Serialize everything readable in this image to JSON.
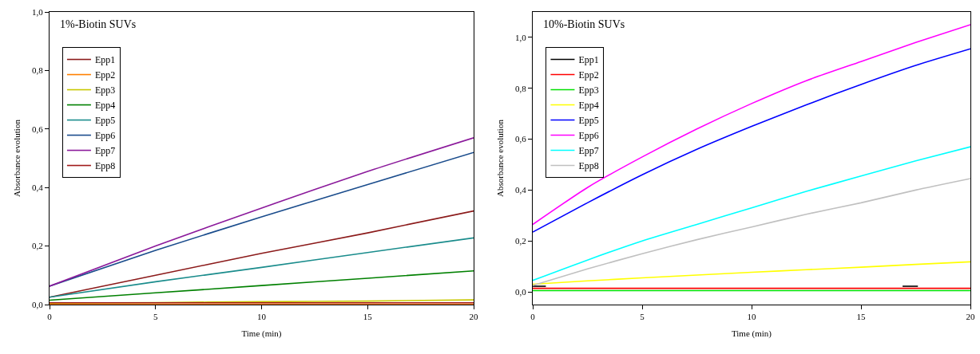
{
  "chart_data": [
    {
      "type": "line",
      "title": "1%-Biotin SUVs",
      "xlabel": "Time (min)",
      "ylabel": "Absorbance evolution",
      "x": [
        0,
        5,
        10,
        15,
        20
      ],
      "xlim": [
        0,
        20
      ],
      "xticks": [
        0,
        5,
        10,
        15,
        20
      ],
      "ylim": [
        0,
        1
      ],
      "yticks": [
        {
          "value": 0,
          "label": "0,0"
        },
        {
          "value": 0.2,
          "label": "0,2"
        },
        {
          "value": 0.4,
          "label": "0,4"
        },
        {
          "value": 0.6,
          "label": "0,6"
        },
        {
          "value": 0.8,
          "label": "0,8"
        },
        {
          "value": 1,
          "label": "1,0"
        }
      ],
      "grid": false,
      "legend": "top left",
      "marker": "none",
      "series": [
        {
          "name": "Epp1",
          "color": "#8b1a1a",
          "values": [
            0.025,
            0.1,
            0.175,
            0.245,
            0.32
          ]
        },
        {
          "name": "Epp2",
          "color": "#ff8000",
          "values": [
            0.001,
            0.001,
            0.001,
            0.001,
            0.001
          ]
        },
        {
          "name": "Epp3",
          "color": "#c8c800",
          "values": [
            0.005,
            0.007,
            0.01,
            0.012,
            0.016
          ]
        },
        {
          "name": "Epp4",
          "color": "#008000",
          "values": [
            0.015,
            0.04,
            0.065,
            0.09,
            0.115
          ]
        },
        {
          "name": "Epp5",
          "color": "#1a8c8c",
          "values": [
            0.025,
            0.078,
            0.127,
            0.178,
            0.228
          ]
        },
        {
          "name": "Epp6",
          "color": "#1a4c8c",
          "values": [
            0.063,
            0.185,
            0.3,
            0.41,
            0.52
          ]
        },
        {
          "name": "Epp7",
          "color": "#8b1a9b",
          "values": [
            0.063,
            0.2,
            0.33,
            0.455,
            0.57
          ]
        },
        {
          "name": "Epp8",
          "color": "#a01a1a",
          "values": [
            0.006,
            0.006,
            0.006,
            0.006,
            0.006
          ]
        }
      ]
    },
    {
      "type": "line",
      "title": "10%-Biotin SUVs",
      "xlabel": "Time (min)",
      "ylabel": "Absorbance evolution",
      "x": [
        0,
        2.5,
        5,
        7.5,
        10,
        12.5,
        15,
        17.5,
        20
      ],
      "xlim": [
        0,
        20
      ],
      "xticks": [
        0,
        5,
        10,
        15,
        20
      ],
      "ylim": [
        -0.05,
        1.1
      ],
      "yticks": [
        {
          "value": 0,
          "label": "0,0"
        },
        {
          "value": 0.2,
          "label": "0,2"
        },
        {
          "value": 0.4,
          "label": "0,4"
        },
        {
          "value": 0.6,
          "label": "0,6"
        },
        {
          "value": 0.8,
          "label": "0,8"
        },
        {
          "value": 1,
          "label": "1,0"
        }
      ],
      "grid": false,
      "legend": "top left",
      "marker": "none",
      "series": [
        {
          "name": "Epp1",
          "color": "#000000",
          "x": [
            0,
            0.6,
            10,
            16.9,
            17.6
          ],
          "values": [
            0.022,
            0.022,
            null,
            0.022,
            0.022
          ]
        },
        {
          "name": "Epp2",
          "color": "#ff0000",
          "values": [
            0.014,
            0.014,
            0.014,
            0.014,
            0.014,
            0.014,
            0.014,
            0.014,
            0.014
          ]
        },
        {
          "name": "Epp3",
          "color": "#00e000",
          "values": [
            0.005,
            0.005,
            0.005,
            0.005,
            0.005,
            0.005,
            0.005,
            0.005,
            0.005
          ]
        },
        {
          "name": "Epp4",
          "color": "#ffff00",
          "values": [
            0.03,
            0.043,
            0.055,
            0.066,
            0.077,
            0.087,
            0.097,
            0.108,
            0.118
          ]
        },
        {
          "name": "Epp5",
          "color": "#0000ff",
          "values": [
            0.235,
            0.35,
            0.46,
            0.56,
            0.65,
            0.735,
            0.815,
            0.89,
            0.955
          ]
        },
        {
          "name": "Epp6",
          "color": "#ff00ff",
          "values": [
            0.265,
            0.41,
            0.53,
            0.64,
            0.74,
            0.83,
            0.905,
            0.98,
            1.05
          ]
        },
        {
          "name": "Epp7",
          "color": "#00ffff",
          "values": [
            0.045,
            0.125,
            0.2,
            0.265,
            0.33,
            0.395,
            0.455,
            0.515,
            0.57
          ]
        },
        {
          "name": "Epp8",
          "color": "#c0c0c0",
          "values": [
            0.025,
            0.09,
            0.15,
            0.205,
            0.255,
            0.305,
            0.35,
            0.4,
            0.445
          ]
        }
      ]
    }
  ]
}
